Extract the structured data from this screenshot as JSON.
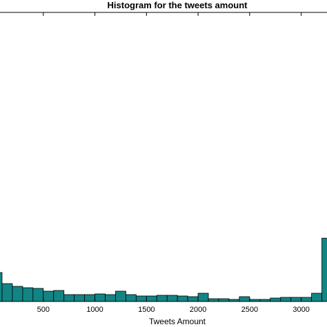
{
  "chart_data": {
    "type": "bar",
    "title": "Histogram for the tweets amount",
    "xlabel": "Tweets Amount",
    "ylabel": "",
    "xticks": [
      "500",
      "1000",
      "1500",
      "2000",
      "2500",
      "3000"
    ],
    "xtick_values": [
      500,
      1000,
      1500,
      2000,
      2500,
      3000
    ],
    "xlim": [
      80,
      3250
    ],
    "ylim": [
      0,
      420
    ],
    "bin_width": 100,
    "bar_color": "#128484",
    "bars": [
      {
        "x0": 0,
        "x1": 100,
        "value": 42
      },
      {
        "x0": 100,
        "value": 26,
        "x1": 200
      },
      {
        "x0": 200,
        "x1": 300,
        "value": 22
      },
      {
        "x0": 300,
        "x1": 400,
        "value": 20
      },
      {
        "x0": 400,
        "x1": 500,
        "value": 19
      },
      {
        "x0": 500,
        "x1": 600,
        "value": 15
      },
      {
        "x0": 600,
        "x1": 700,
        "value": 16
      },
      {
        "x0": 700,
        "x1": 800,
        "value": 10
      },
      {
        "x0": 800,
        "x1": 900,
        "value": 10
      },
      {
        "x0": 900,
        "x1": 1000,
        "value": 10
      },
      {
        "x0": 1000,
        "x1": 1100,
        "value": 11
      },
      {
        "x0": 1100,
        "x1": 1200,
        "value": 10
      },
      {
        "x0": 1200,
        "x1": 1300,
        "value": 15
      },
      {
        "x0": 1300,
        "x1": 1400,
        "value": 10
      },
      {
        "x0": 1400,
        "x1": 1500,
        "value": 8
      },
      {
        "x0": 1500,
        "x1": 1600,
        "value": 8
      },
      {
        "x0": 1600,
        "x1": 1700,
        "value": 9
      },
      {
        "x0": 1700,
        "x1": 1800,
        "value": 9
      },
      {
        "x0": 1800,
        "x1": 1900,
        "value": 8
      },
      {
        "x0": 1900,
        "x1": 2000,
        "value": 7
      },
      {
        "x0": 2000,
        "x1": 2100,
        "value": 12
      },
      {
        "x0": 2100,
        "x1": 2200,
        "value": 4
      },
      {
        "x0": 2200,
        "x1": 2300,
        "value": 4
      },
      {
        "x0": 2300,
        "x1": 2400,
        "value": 3
      },
      {
        "x0": 2400,
        "x1": 2500,
        "value": 7
      },
      {
        "x0": 2500,
        "x1": 2600,
        "value": 3
      },
      {
        "x0": 2600,
        "x1": 2700,
        "value": 3
      },
      {
        "x0": 2700,
        "x1": 2800,
        "value": 5
      },
      {
        "x0": 2800,
        "x1": 2900,
        "value": 6
      },
      {
        "x0": 2900,
        "x1": 3000,
        "value": 6
      },
      {
        "x0": 3000,
        "x1": 3100,
        "value": 6
      },
      {
        "x0": 3100,
        "x1": 3200,
        "value": 12
      },
      {
        "x0": 3200,
        "x1": 3300,
        "value": 92
      }
    ]
  }
}
